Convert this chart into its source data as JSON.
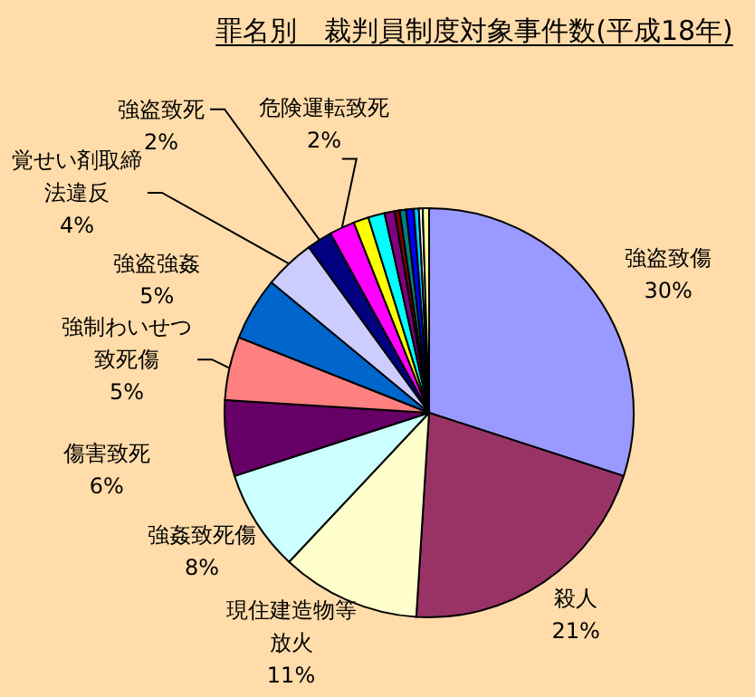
{
  "chart_data": {
    "type": "pie",
    "title": "罪名別　裁判員制度対象事件数(平成18年)",
    "categories": [
      "強盗致傷",
      "殺人",
      "現住建造物等放火",
      "強姦致死傷",
      "傷害致死",
      "強制わいせつ致死傷",
      "強盗強姦",
      "覚せい剤取締法違反",
      "強盗致死",
      "危険運転致死",
      null,
      null,
      null,
      null,
      null,
      null,
      null,
      null,
      null
    ],
    "values": [
      30,
      21,
      11,
      8,
      6,
      5,
      5,
      4,
      2,
      2,
      1.2,
      1.3,
      0.8,
      0.4,
      0.5,
      0.6,
      0.4,
      0.3,
      0.5
    ],
    "value_labels": [
      "30%",
      "21%",
      "11%",
      "8%",
      "6%",
      "5%",
      "5%",
      "4%",
      "2%",
      "2%",
      null,
      null,
      null,
      null,
      null,
      null,
      null,
      null,
      null
    ],
    "colors": [
      "#9999ff",
      "#993366",
      "#ffffcc",
      "#ccffff",
      "#660066",
      "#ff8080",
      "#0066cc",
      "#ccccff",
      "#000080",
      "#ff00ff",
      "#ffff00",
      "#00ffff",
      "#800080",
      "#800000",
      "#008080",
      "#0000ff",
      "#00ccff",
      "#ffffff",
      "#ffff99"
    ]
  }
}
